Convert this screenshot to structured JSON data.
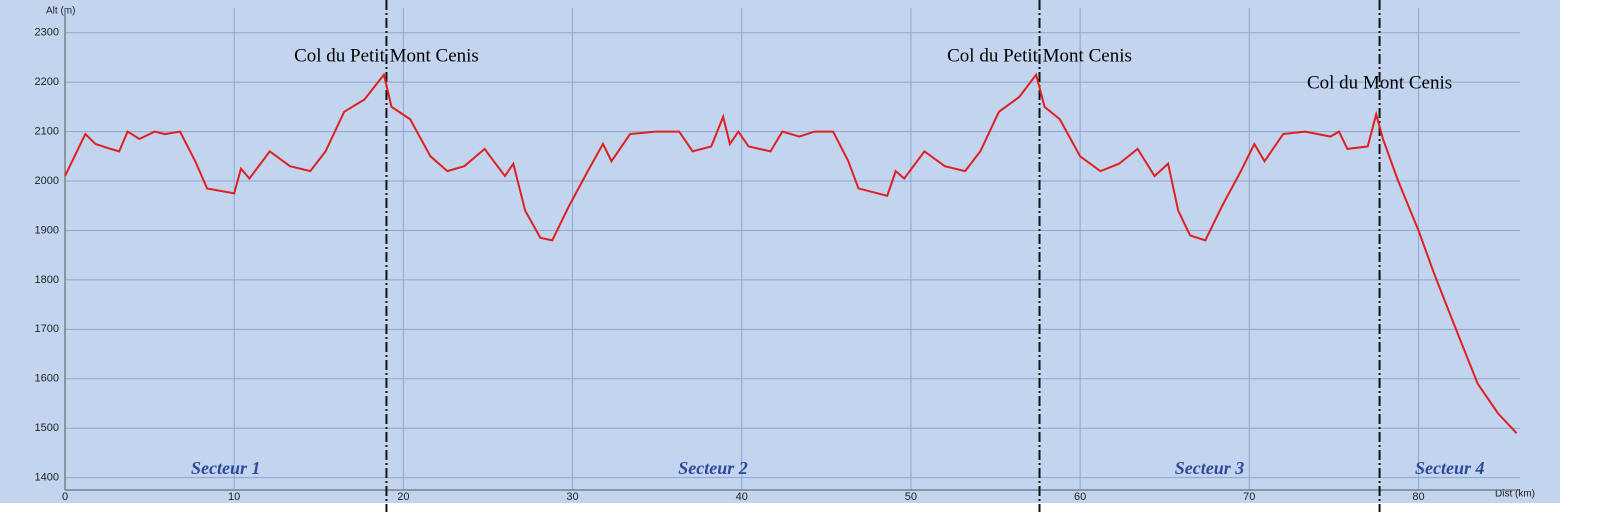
{
  "chart_data": {
    "type": "line",
    "y_label": "Alt (m)",
    "x_label": "Dist (km)",
    "x": [
      0,
      1.2,
      1.8,
      2.7,
      3.2,
      3.7,
      4.4,
      5.3,
      5.9,
      6.8,
      7.7,
      8.4,
      10.0,
      10.4,
      10.9,
      12.1,
      13.3,
      14.5,
      15.4,
      16.5,
      17.7,
      18.85,
      19.3,
      20.4,
      21.6,
      22.6,
      23.6,
      24.8,
      26.0,
      26.5,
      27.2,
      28.1,
      28.8,
      29.8,
      30.9,
      31.8,
      32.3,
      33.4,
      34.9,
      36.3,
      37.1,
      38.2,
      38.9,
      39.3,
      39.8,
      40.4,
      41.7,
      42.4,
      43.4,
      44.3,
      45.4,
      46.3,
      46.9,
      48.6,
      49.1,
      49.6,
      50.8,
      52.0,
      53.2,
      54.1,
      55.2,
      56.4,
      57.4,
      57.9,
      58.8,
      60.0,
      61.2,
      62.3,
      63.4,
      64.4,
      65.2,
      65.8,
      66.5,
      67.4,
      68.4,
      69.5,
      70.3,
      70.9,
      72.0,
      73.3,
      74.8,
      75.3,
      75.8,
      77.0,
      77.5,
      77.9,
      78.8,
      80.0,
      80.9,
      82.1,
      83.5,
      84.7,
      85.8
    ],
    "series": [
      {
        "name": "Altitude",
        "color": "#e02020",
        "values": [
          2010,
          2095,
          2075,
          2065,
          2060,
          2100,
          2085,
          2100,
          2095,
          2100,
          2040,
          1985,
          1975,
          2025,
          2005,
          2060,
          2030,
          2020,
          2060,
          2140,
          2165,
          2215,
          2150,
          2125,
          2050,
          2020,
          2030,
          2065,
          2010,
          2035,
          1940,
          1885,
          1880,
          1950,
          2020,
          2075,
          2040,
          2095,
          2100,
          2100,
          2060,
          2070,
          2130,
          2075,
          2100,
          2070,
          2060,
          2100,
          2090,
          2100,
          2100,
          2040,
          1985,
          1970,
          2020,
          2005,
          2060,
          2030,
          2020,
          2060,
          2140,
          2170,
          2215,
          2150,
          2125,
          2050,
          2020,
          2035,
          2065,
          2010,
          2035,
          1940,
          1890,
          1880,
          1950,
          2020,
          2075,
          2040,
          2095,
          2100,
          2090,
          2100,
          2065,
          2070,
          2135,
          2085,
          2000,
          1900,
          1815,
          1710,
          1590,
          1530,
          1490
        ]
      }
    ],
    "markers": [
      {
        "x": 19,
        "label": "Col du Petit Mont Cenis"
      },
      {
        "x": 57.6,
        "label": "Col du Petit Mont Cenis"
      },
      {
        "x": 77.7,
        "label": "Col du Mont Cenis"
      }
    ],
    "sectors": [
      "Secteur 1",
      "Secteur 2",
      "Secteur 3",
      "Secteur 4"
    ],
    "xlim": [
      0,
      86
    ],
    "ylim": [
      1375,
      2350
    ],
    "xticks": [
      0,
      10,
      20,
      30,
      40,
      50,
      60,
      70,
      80
    ],
    "yticks": [
      1400,
      1500,
      1600,
      1700,
      1800,
      1900,
      2000,
      2100,
      2200,
      2300
    ],
    "grid": true
  }
}
